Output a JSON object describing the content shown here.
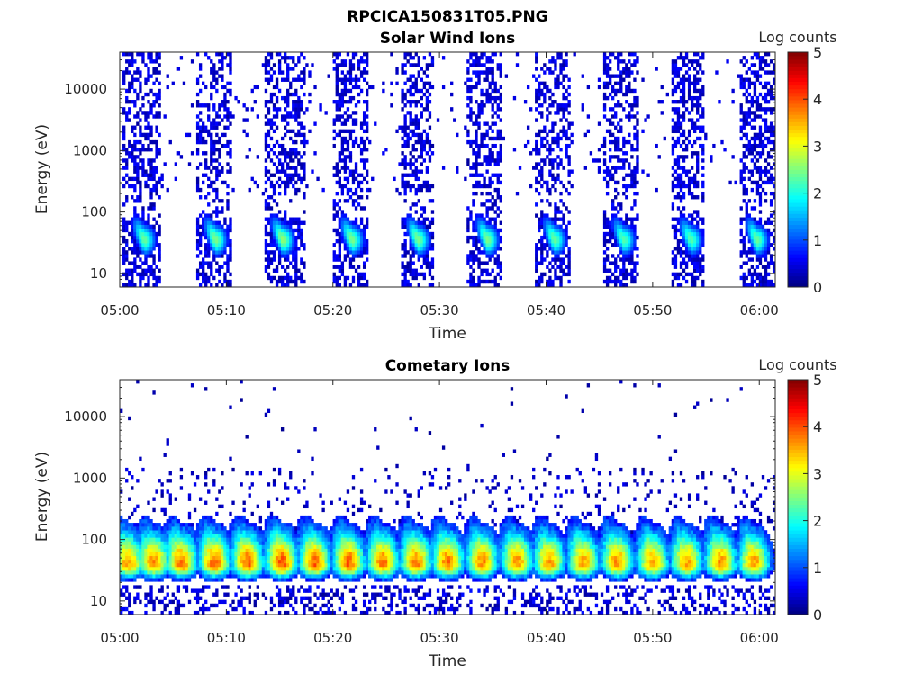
{
  "figure": {
    "title": "RPCICA150831T05.PNG"
  },
  "chart_data": [
    {
      "type": "heatmap",
      "title": "Solar Wind Ions",
      "xlabel": "Time",
      "ylabel": "Energy (eV)",
      "x_ticks": [
        "05:00",
        "05:10",
        "05:20",
        "05:30",
        "05:40",
        "05:50",
        "06:00"
      ],
      "y_ticks": [
        "10",
        "100",
        "1000",
        "10000"
      ],
      "y_scale": "log",
      "ylim": [
        6,
        40000
      ],
      "xlim_minutes": [
        0,
        61.5
      ],
      "colorbar": {
        "label": "Log counts",
        "ticks": [
          "0",
          "1",
          "2",
          "3",
          "4",
          "5"
        ],
        "range": [
          0,
          5
        ],
        "colormap": "jet"
      },
      "scans": [
        {
          "start_min": 0.3,
          "end_min": 3.8,
          "peak_min": 2.3,
          "peak_energy_ev": 35,
          "peak_log_counts": 2.4
        },
        {
          "start_min": 7.2,
          "end_min": 10.5,
          "peak_min": 9.0,
          "peak_energy_ev": 35,
          "peak_log_counts": 2.5
        },
        {
          "start_min": 13.6,
          "end_min": 17.3,
          "peak_min": 15.3,
          "peak_energy_ev": 35,
          "peak_log_counts": 2.6
        },
        {
          "start_min": 20.0,
          "end_min": 23.3,
          "peak_min": 21.8,
          "peak_energy_ev": 35,
          "peak_log_counts": 2.5
        },
        {
          "start_min": 26.3,
          "end_min": 29.5,
          "peak_min": 28.0,
          "peak_energy_ev": 35,
          "peak_log_counts": 2.5
        },
        {
          "start_min": 32.6,
          "end_min": 35.8,
          "peak_min": 34.5,
          "peak_energy_ev": 35,
          "peak_log_counts": 2.5
        },
        {
          "start_min": 39.0,
          "end_min": 42.3,
          "peak_min": 40.8,
          "peak_energy_ev": 35,
          "peak_log_counts": 2.4
        },
        {
          "start_min": 45.3,
          "end_min": 48.6,
          "peak_min": 47.3,
          "peak_energy_ev": 35,
          "peak_log_counts": 2.3
        },
        {
          "start_min": 51.8,
          "end_min": 54.9,
          "peak_min": 53.6,
          "peak_energy_ev": 35,
          "peak_log_counts": 2.3
        },
        {
          "start_min": 58.1,
          "end_min": 61.5,
          "peak_min": 59.8,
          "peak_energy_ev": 35,
          "peak_log_counts": 2.4
        }
      ]
    },
    {
      "type": "heatmap",
      "title": "Cometary Ions",
      "xlabel": "Time",
      "ylabel": "Energy (eV)",
      "x_ticks": [
        "05:00",
        "05:10",
        "05:20",
        "05:30",
        "05:40",
        "05:50",
        "06:00"
      ],
      "y_ticks": [
        "10",
        "100",
        "1000",
        "10000"
      ],
      "y_scale": "log",
      "ylim": [
        6,
        40000
      ],
      "xlim_minutes": [
        0,
        61.5
      ],
      "colorbar": {
        "label": "Log counts",
        "ticks": [
          "0",
          "1",
          "2",
          "3",
          "4",
          "5"
        ],
        "range": [
          0,
          5
        ],
        "colormap": "jet"
      },
      "band_energy_ev": 40,
      "scans": [
        {
          "center_min": 0.8,
          "peak_log_counts": 3.6
        },
        {
          "center_min": 3.2,
          "peak_log_counts": 3.7
        },
        {
          "center_min": 5.8,
          "peak_log_counts": 3.8
        },
        {
          "center_min": 8.9,
          "peak_log_counts": 3.9
        },
        {
          "center_min": 12.0,
          "peak_log_counts": 3.9
        },
        {
          "center_min": 15.2,
          "peak_log_counts": 4.0
        },
        {
          "center_min": 18.3,
          "peak_log_counts": 3.9
        },
        {
          "center_min": 21.5,
          "peak_log_counts": 3.9
        },
        {
          "center_min": 24.7,
          "peak_log_counts": 3.8
        },
        {
          "center_min": 27.8,
          "peak_log_counts": 3.8
        },
        {
          "center_min": 30.8,
          "peak_log_counts": 3.8
        },
        {
          "center_min": 34.0,
          "peak_log_counts": 3.7
        },
        {
          "center_min": 37.3,
          "peak_log_counts": 3.7
        },
        {
          "center_min": 40.3,
          "peak_log_counts": 3.6
        },
        {
          "center_min": 43.5,
          "peak_log_counts": 3.6
        },
        {
          "center_min": 46.7,
          "peak_log_counts": 3.7
        },
        {
          "center_min": 50.0,
          "peak_log_counts": 3.6
        },
        {
          "center_min": 53.2,
          "peak_log_counts": 3.6
        },
        {
          "center_min": 56.4,
          "peak_log_counts": 3.7
        },
        {
          "center_min": 59.5,
          "peak_log_counts": 3.6
        }
      ]
    }
  ]
}
